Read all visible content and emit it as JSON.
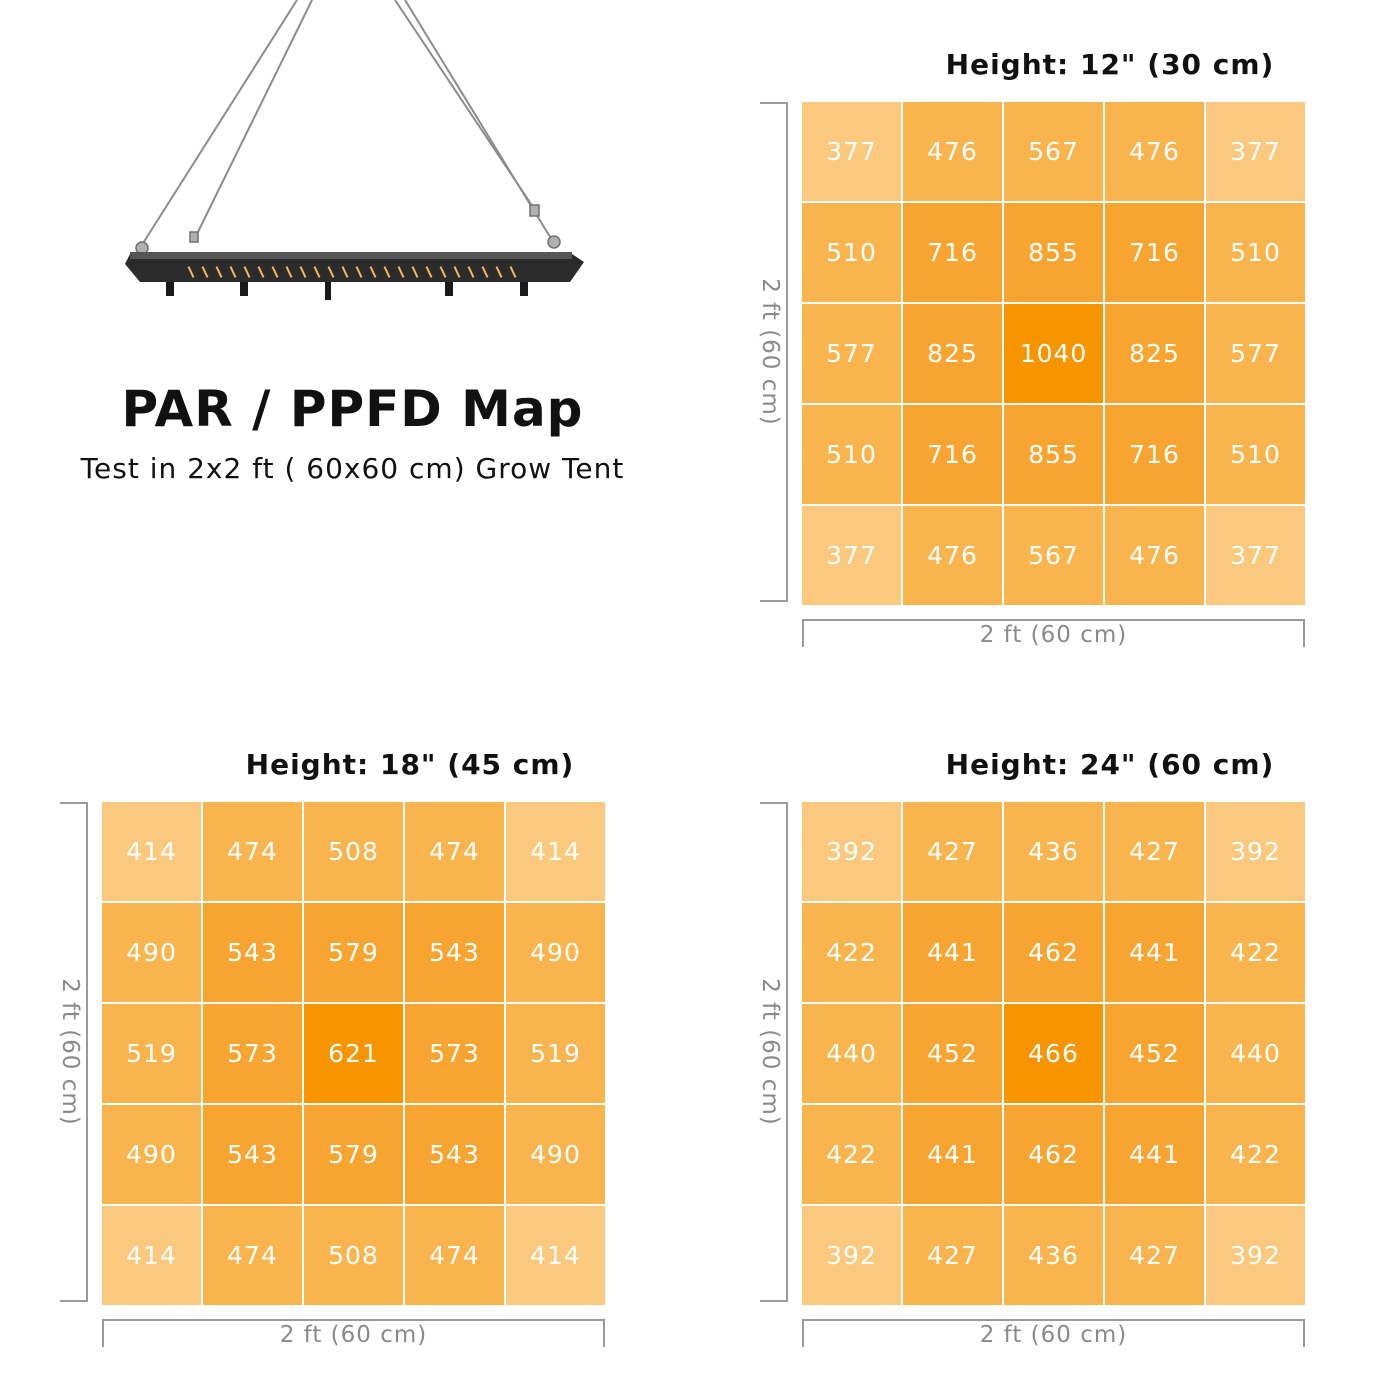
{
  "header": {
    "title": "PAR / PPFD Map",
    "subtitle": "Test in 2x2 ft ( 60x60 cm) Grow Tent"
  },
  "colors": {
    "corner": "#fbc97d",
    "edge": "#f9b44e",
    "inner": "#f8a430",
    "center": "#f69500"
  },
  "chart_data": [
    {
      "type": "heatmap",
      "title": "Height: 12\" (30 cm)",
      "xlabel": "2 ft (60 cm)",
      "ylabel": "2 ft (60 cm)",
      "values": [
        [
          377,
          476,
          567,
          476,
          377
        ],
        [
          510,
          716,
          855,
          716,
          510
        ],
        [
          577,
          825,
          1040,
          825,
          577
        ],
        [
          510,
          716,
          855,
          716,
          510
        ],
        [
          377,
          476,
          567,
          476,
          377
        ]
      ]
    },
    {
      "type": "heatmap",
      "title": "Height: 18\" (45 cm)",
      "xlabel": "2 ft (60 cm)",
      "ylabel": "2 ft (60 cm)",
      "values": [
        [
          414,
          474,
          508,
          474,
          414
        ],
        [
          490,
          543,
          579,
          543,
          490
        ],
        [
          519,
          573,
          621,
          573,
          519
        ],
        [
          490,
          543,
          579,
          543,
          490
        ],
        [
          414,
          474,
          508,
          474,
          414
        ]
      ]
    },
    {
      "type": "heatmap",
      "title": "Height: 24\" (60 cm)",
      "xlabel": "2 ft (60 cm)",
      "ylabel": "2 ft (60 cm)",
      "values": [
        [
          392,
          427,
          436,
          427,
          392
        ],
        [
          422,
          441,
          462,
          441,
          422
        ],
        [
          440,
          452,
          466,
          452,
          440
        ],
        [
          422,
          441,
          462,
          441,
          422
        ],
        [
          392,
          427,
          436,
          427,
          392
        ]
      ]
    }
  ]
}
